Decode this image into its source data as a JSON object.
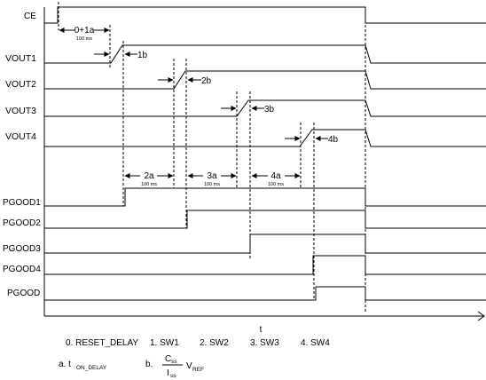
{
  "signals": {
    "ce": "CE",
    "vout1": "VOUT1",
    "vout2": "VOUT2",
    "vout3": "VOUT3",
    "vout4": "VOUT4",
    "pgood1": "PGOOD1",
    "pgood2": "PGOOD2",
    "pgood3": "PGOOD3",
    "pgood4": "PGOOD4",
    "pgood": "PGOOD"
  },
  "intervals": {
    "i01a": {
      "label": "0+1a",
      "sub": "100 ms"
    },
    "i2a": {
      "label": "2a",
      "sub": "100 ms"
    },
    "i3a": {
      "label": "3a",
      "sub": "100 ms"
    },
    "i4a": {
      "label": "4a",
      "sub": "100 ms"
    }
  },
  "ramps": {
    "r1b": "1b",
    "r2b": "2b",
    "r3b": "3b",
    "r4b": "4b"
  },
  "axis": {
    "t": "t"
  },
  "legend": {
    "l0": "0.  RESET_DELAY",
    "l1": "1.  SW1",
    "l2": "2.  SW2",
    "l3": "3.  SW3",
    "l4": "4.  SW4",
    "a_prefix": "a.  t",
    "a_sub": "ON_DELAY",
    "b_prefix": "b.",
    "b_num": "C",
    "b_num_sub": "ss",
    "b_den": "I",
    "b_den_sub": "ss",
    "b_v": "V",
    "b_v_sub": "REF"
  }
}
